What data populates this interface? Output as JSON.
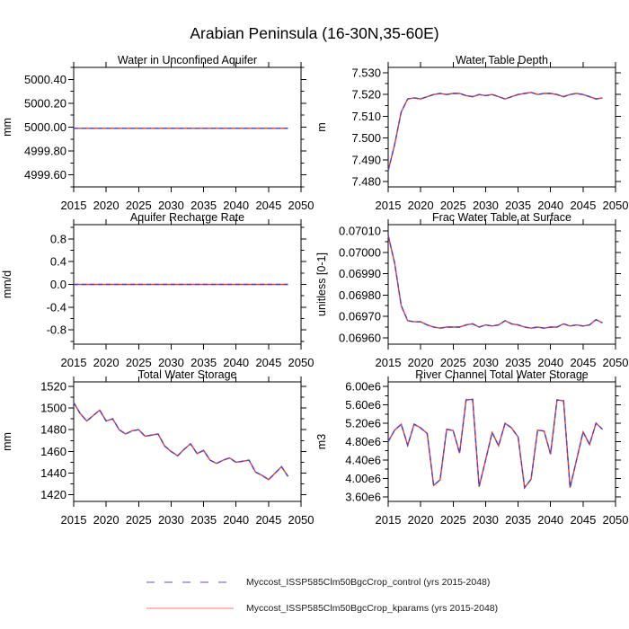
{
  "title": "Arabian Peninsula (16-30N,35-60E)",
  "colors": {
    "control": "#4343cf",
    "kparams": "#e83838",
    "axis": "#000000",
    "background": "#ffffff"
  },
  "legend": {
    "entries": [
      {
        "label": "Myccost_ISSP585Clm50BgcCrop_control (yrs 2015-2048)",
        "style": "dashed",
        "color": "#7373e2"
      },
      {
        "label": "Myccost_ISSP585Clm50BgcCrop_kparams (yrs 2015-2048)",
        "style": "solid",
        "color": "#ff9292"
      }
    ]
  },
  "chart_data": {
    "type": "line",
    "layout": "2x3-grid",
    "series_names": [
      "Myccost_ISSP585Clm50BgcCrop_control",
      "Myccost_ISSP585Clm50BgcCrop_kparams"
    ],
    "overlap_note": "Both series coincide exactly in every panel: control is dashed blue, kparams is solid red underneath",
    "x": [
      2015,
      2016,
      2017,
      2018,
      2019,
      2020,
      2021,
      2022,
      2023,
      2024,
      2025,
      2026,
      2027,
      2028,
      2029,
      2030,
      2031,
      2032,
      2033,
      2034,
      2035,
      2036,
      2037,
      2038,
      2039,
      2040,
      2041,
      2042,
      2043,
      2044,
      2045,
      2046,
      2047,
      2048
    ],
    "xlim": [
      2015,
      2050
    ],
    "xticks": [
      2015,
      2020,
      2025,
      2030,
      2035,
      2040,
      2045,
      2050
    ],
    "xtick_labels": [
      "2015",
      "2020",
      "2025",
      "2030",
      "2035",
      "2040",
      "2045",
      "2050"
    ],
    "panels": [
      {
        "title": "Water in Unconfined Aquifer",
        "ylabel": "mm",
        "ylim": [
          4999.5,
          5000.5
        ],
        "yticks": [
          4999.6,
          4999.8,
          5000.0,
          5000.2,
          5000.4
        ],
        "ytick_labels": [
          "4999.60",
          "4999.80",
          "5000.00",
          "5000.20",
          "5000.40"
        ],
        "yminor_step": 0.1,
        "values": [
          4999.99,
          4999.99,
          4999.99,
          4999.99,
          4999.99,
          4999.99,
          4999.99,
          4999.99,
          4999.99,
          4999.99,
          4999.99,
          4999.99,
          4999.99,
          4999.99,
          4999.99,
          4999.99,
          4999.99,
          4999.99,
          4999.99,
          4999.99,
          4999.99,
          4999.99,
          4999.99,
          4999.99,
          4999.99,
          4999.99,
          4999.99,
          4999.99,
          4999.99,
          4999.99,
          4999.99,
          4999.99,
          4999.99,
          4999.99
        ]
      },
      {
        "title": "Water Table Depth",
        "ylabel": "m",
        "ylim": [
          7.4775,
          7.5325
        ],
        "yticks": [
          7.48,
          7.49,
          7.5,
          7.51,
          7.52,
          7.53
        ],
        "ytick_labels": [
          "7.480",
          "7.490",
          "7.500",
          "7.510",
          "7.520",
          "7.530"
        ],
        "yminor_step": 0.005,
        "values": [
          7.485,
          7.497,
          7.512,
          7.518,
          7.5185,
          7.518,
          7.519,
          7.52,
          7.5205,
          7.52,
          7.5205,
          7.5205,
          7.5195,
          7.519,
          7.52,
          7.5195,
          7.52,
          7.519,
          7.518,
          7.519,
          7.52,
          7.5205,
          7.521,
          7.52,
          7.5205,
          7.5205,
          7.52,
          7.519,
          7.52,
          7.5205,
          7.52,
          7.519,
          7.518,
          7.5185
        ]
      },
      {
        "title": "Aquifer Recharge Rate",
        "ylabel": "mm/d",
        "ylim": [
          -1.05,
          1.05
        ],
        "yticks": [
          -0.8,
          -0.4,
          0.0,
          0.4,
          0.8
        ],
        "ytick_labels": [
          "-0.8",
          "-0.4",
          "0.0",
          "0.4",
          "0.8"
        ],
        "yminor_step": 0.2,
        "values": [
          0,
          0,
          0,
          0,
          0,
          0,
          0,
          0,
          0,
          0,
          0,
          0,
          0,
          0,
          0,
          0,
          0,
          0,
          0,
          0,
          0,
          0,
          0,
          0,
          0,
          0,
          0,
          0,
          0,
          0,
          0,
          0,
          0,
          0
        ]
      },
      {
        "title": "Frac Water Table at Surface",
        "ylabel": "unitless [0-1]",
        "ylim": [
          0.06957,
          0.07013
        ],
        "yticks": [
          0.0696,
          0.0697,
          0.0698,
          0.0699,
          0.07,
          0.0701
        ],
        "ytick_labels": [
          "0.06960",
          "0.06970",
          "0.06980",
          "0.06990",
          "0.07000",
          "0.07010"
        ],
        "yminor_step": 5e-05,
        "values": [
          0.07008,
          0.06995,
          0.06975,
          0.06968,
          0.069675,
          0.069675,
          0.06966,
          0.06965,
          0.069645,
          0.06965,
          0.06965,
          0.06965,
          0.06966,
          0.069665,
          0.06965,
          0.06966,
          0.069655,
          0.06966,
          0.06968,
          0.069665,
          0.06966,
          0.06965,
          0.069645,
          0.06965,
          0.069645,
          0.06965,
          0.06965,
          0.069665,
          0.069655,
          0.06966,
          0.069655,
          0.06966,
          0.069685,
          0.06967
        ]
      },
      {
        "title": "Total Water Storage",
        "ylabel": "mm",
        "ylim": [
          1414,
          1524
        ],
        "yticks": [
          1420,
          1440,
          1460,
          1480,
          1500,
          1520
        ],
        "ytick_labels": [
          "1420",
          "1440",
          "1460",
          "1480",
          "1500",
          "1520"
        ],
        "yminor_step": 10,
        "values": [
          1505,
          1495,
          1488,
          1493,
          1498,
          1488,
          1490,
          1480,
          1476,
          1479,
          1480,
          1474,
          1475,
          1476,
          1465,
          1460,
          1456,
          1462,
          1467,
          1458,
          1461,
          1452,
          1449,
          1452,
          1454,
          1450,
          1451,
          1452,
          1441,
          1438,
          1434,
          1440,
          1446,
          1437
        ]
      },
      {
        "title": "River Channel Total Water Storage",
        "ylabel": "m3",
        "ylim": [
          3500000,
          6100000
        ],
        "yticks": [
          3600000,
          4000000,
          4400000,
          4800000,
          5200000,
          5600000,
          6000000
        ],
        "ytick_labels": [
          "3.60e6",
          "4.00e6",
          "4.40e6",
          "4.80e6",
          "5.20e6",
          "5.60e6",
          "6.00e6"
        ],
        "yminor_step": 200000,
        "values": [
          4800000,
          5050000,
          5180000,
          4720000,
          5180000,
          5100000,
          4980000,
          3850000,
          3970000,
          5070000,
          5040000,
          4550000,
          5710000,
          5720000,
          3820000,
          4400000,
          5000000,
          4710000,
          5200000,
          5100000,
          4900000,
          3800000,
          3980000,
          5050000,
          5030000,
          4530000,
          5710000,
          5690000,
          3800000,
          4400000,
          5010000,
          4740000,
          5200000,
          5070000
        ]
      }
    ]
  }
}
